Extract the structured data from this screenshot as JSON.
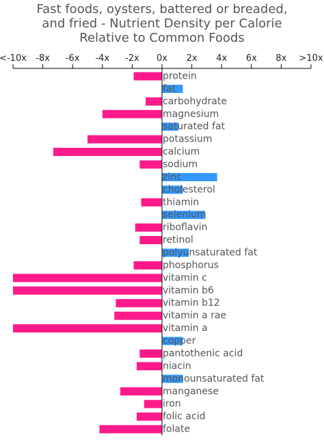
{
  "chart_data": {
    "type": "bar",
    "orientation": "horizontal",
    "title_lines": [
      "Fast foods, oysters, battered or breaded,",
      "and fried - Nutrient Density per Calorie",
      "Relative to Common Foods"
    ],
    "xlim": [
      -10,
      10
    ],
    "x_ticks": [
      {
        "value": -10,
        "label": "<-10x"
      },
      {
        "value": -8,
        "label": "-8x"
      },
      {
        "value": -6,
        "label": "-6x"
      },
      {
        "value": -4,
        "label": "-4x"
      },
      {
        "value": -2,
        "label": "-2x"
      },
      {
        "value": 0,
        "label": "0x"
      },
      {
        "value": 2,
        "label": "2x"
      },
      {
        "value": 4,
        "label": "4x"
      },
      {
        "value": 6,
        "label": "6x"
      },
      {
        "value": 8,
        "label": "8x"
      },
      {
        "value": 10,
        "label": ">10x"
      }
    ],
    "colors": {
      "positive": "#3399ff",
      "negative": "#ff1a8c",
      "axis": "#000000"
    },
    "categories": [
      "protein",
      "fat",
      "carbohydrate",
      "magnesium",
      "saturated fat",
      "potassium",
      "calcium",
      "sodium",
      "zinc",
      "cholesterol",
      "thiamin",
      "selenium",
      "riboflavin",
      "retinol",
      "polyunsaturated fat",
      "phosphorus",
      "vitamin c",
      "vitamin b6",
      "vitamin b12",
      "vitamin a rae",
      "vitamin a",
      "copper",
      "pantothenic acid",
      "niacin",
      "monounsaturated fat",
      "manganese",
      "iron",
      "folic acid",
      "folate"
    ],
    "values": [
      -1.9,
      1.4,
      -1.1,
      -4.0,
      1.1,
      -5.0,
      -7.3,
      -1.5,
      3.7,
      1.4,
      -1.4,
      2.9,
      -1.8,
      -1.5,
      1.8,
      -1.9,
      -10,
      -10,
      -3.1,
      -3.2,
      -10,
      1.4,
      -1.5,
      -1.7,
      1.4,
      -2.8,
      -1.2,
      -1.7,
      -4.2
    ]
  }
}
